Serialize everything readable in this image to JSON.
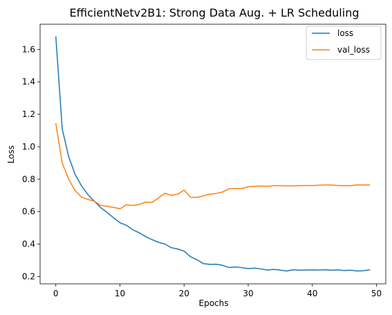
{
  "chart_data": {
    "type": "line",
    "title": "EfficientNetv2B1: Strong Data Aug. + LR Scheduling",
    "xlabel": "Epochs",
    "ylabel": "Loss",
    "xlim": [
      -2.45,
      51.45
    ],
    "ylim": [
      0.155,
      1.755
    ],
    "xticks": [
      0,
      10,
      20,
      30,
      40,
      50
    ],
    "yticks": [
      0.2,
      0.4,
      0.6,
      0.8,
      1.0,
      1.2,
      1.4,
      1.6
    ],
    "xtick_labels": [
      "0",
      "10",
      "20",
      "30",
      "40",
      "50"
    ],
    "ytick_labels": [
      "0.2",
      "0.4",
      "0.6",
      "0.8",
      "1.0",
      "1.2",
      "1.4",
      "1.6"
    ],
    "grid": false,
    "legend": {
      "placement": "upper right"
    },
    "x": [
      0,
      1,
      2,
      3,
      4,
      5,
      6,
      7,
      8,
      9,
      10,
      11,
      12,
      13,
      14,
      15,
      16,
      17,
      18,
      19,
      20,
      21,
      22,
      23,
      24,
      25,
      26,
      27,
      28,
      29,
      30,
      31,
      32,
      33,
      34,
      35,
      36,
      37,
      38,
      39,
      40,
      41,
      42,
      43,
      44,
      45,
      46,
      47,
      48,
      49
    ],
    "series": [
      {
        "name": "loss",
        "color": "#1f77b4",
        "values": [
          1.68,
          1.11,
          0.94,
          0.83,
          0.76,
          0.705,
          0.665,
          0.625,
          0.595,
          0.562,
          0.532,
          0.516,
          0.488,
          0.47,
          0.446,
          0.428,
          0.411,
          0.401,
          0.378,
          0.37,
          0.357,
          0.322,
          0.304,
          0.28,
          0.275,
          0.276,
          0.269,
          0.256,
          0.259,
          0.255,
          0.249,
          0.252,
          0.247,
          0.24,
          0.244,
          0.24,
          0.234,
          0.242,
          0.239,
          0.24,
          0.241,
          0.24,
          0.242,
          0.239,
          0.241,
          0.237,
          0.239,
          0.234,
          0.236,
          0.242
        ]
      },
      {
        "name": "val_loss",
        "color": "#ff7f0e",
        "values": [
          1.145,
          0.9,
          0.8,
          0.73,
          0.69,
          0.675,
          0.665,
          0.638,
          0.633,
          0.626,
          0.618,
          0.642,
          0.638,
          0.644,
          0.659,
          0.657,
          0.684,
          0.713,
          0.701,
          0.707,
          0.733,
          0.689,
          0.688,
          0.697,
          0.708,
          0.712,
          0.721,
          0.741,
          0.742,
          0.742,
          0.754,
          0.756,
          0.758,
          0.756,
          0.76,
          0.76,
          0.759,
          0.759,
          0.76,
          0.761,
          0.761,
          0.763,
          0.764,
          0.764,
          0.761,
          0.76,
          0.76,
          0.765,
          0.764,
          0.764
        ]
      }
    ]
  }
}
